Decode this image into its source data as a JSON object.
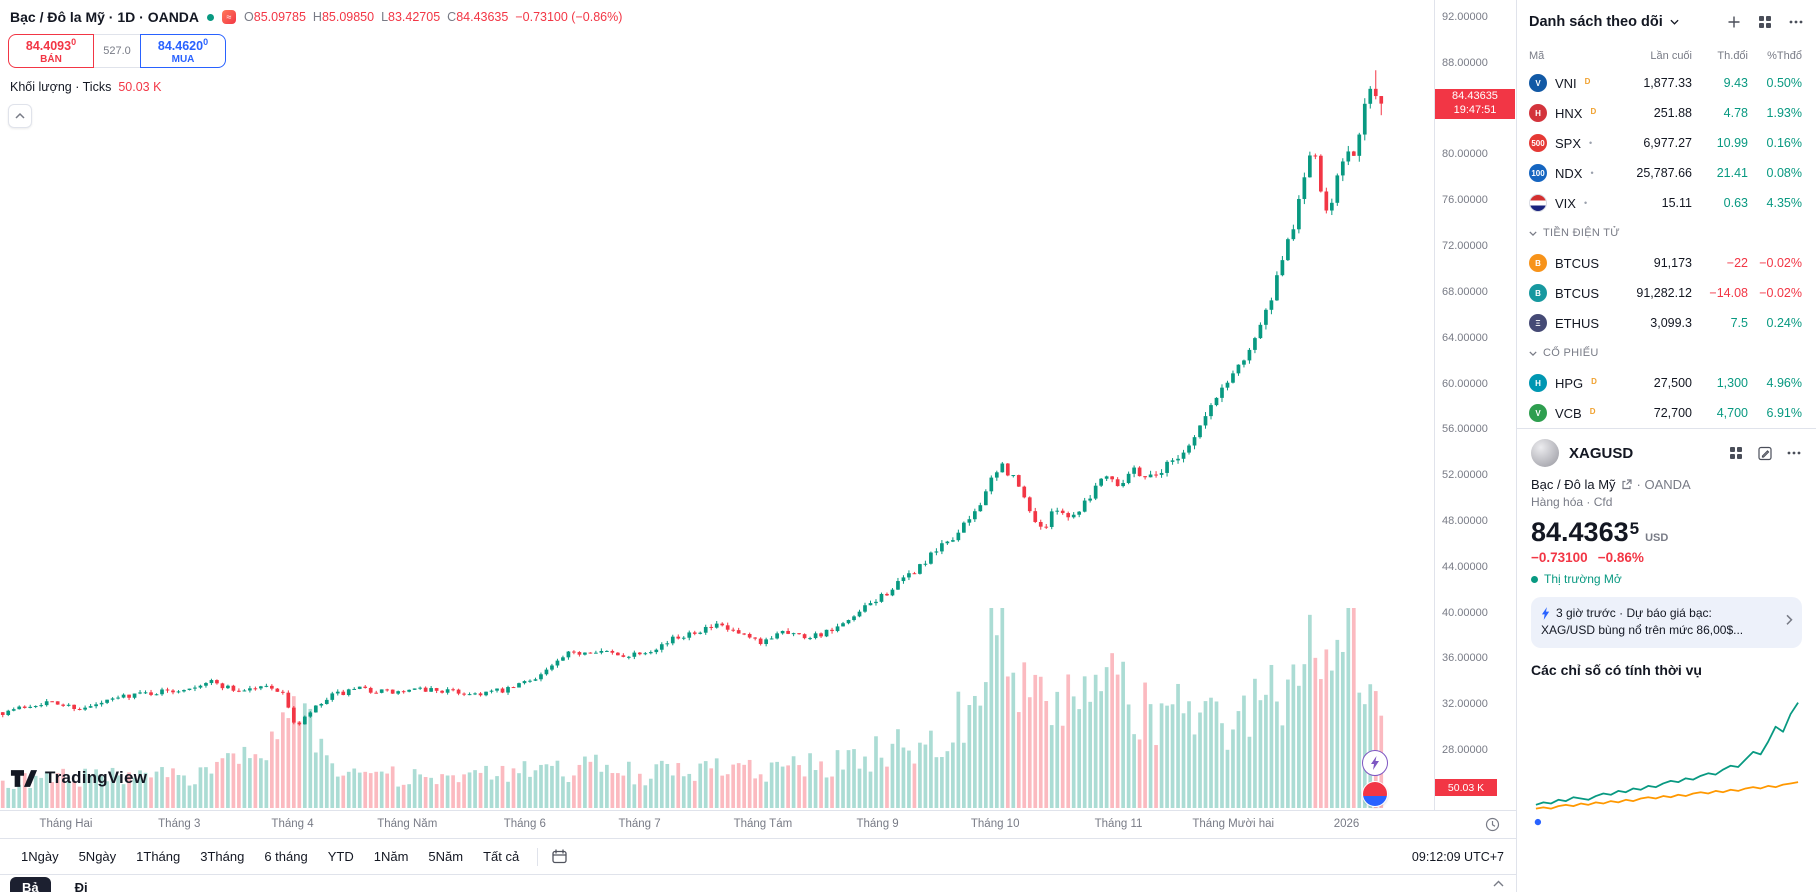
{
  "legend": {
    "title": "Bạc / Đô la Mỹ · 1D · OANDA",
    "keys": [
      "O",
      "H",
      "L",
      "C"
    ],
    "o": "85.09785",
    "h": "85.09850",
    "l": "83.42705",
    "c": "84.43635",
    "change": "−0.73100 (−0.86%)",
    "volume_label": "Khối lượng · Ticks",
    "volume_value": "50.03 K"
  },
  "trade": {
    "sell_price": "84.4093",
    "sell_sup": "0",
    "sell_label": "BÁN",
    "spread": "527.0",
    "buy_price": "84.4620",
    "buy_sup": "0",
    "buy_label": "MUA"
  },
  "chart_data": [
    {
      "type": "candlestick",
      "symbol": "XAGUSD",
      "interval": "1D",
      "exchange": "OANDA",
      "y_axis": {
        "ticks": [
          92,
          88,
          84,
          80,
          76,
          72,
          68,
          64,
          60,
          56,
          52,
          48,
          44,
          40,
          36,
          32,
          28
        ],
        "decimals": 5
      },
      "x_labels": [
        {
          "t": "Tháng Hai",
          "f": 0.046
        },
        {
          "t": "Tháng 3",
          "f": 0.125
        },
        {
          "t": "Tháng 4",
          "f": 0.204
        },
        {
          "t": "Tháng Năm",
          "f": 0.284
        },
        {
          "t": "Tháng 6",
          "f": 0.366
        },
        {
          "t": "Tháng 7",
          "f": 0.446
        },
        {
          "t": "Tháng Tám",
          "f": 0.532
        },
        {
          "t": "Tháng 9",
          "f": 0.612
        },
        {
          "t": "Tháng 10",
          "f": 0.694
        },
        {
          "t": "Tháng 11",
          "f": 0.78
        },
        {
          "t": "Tháng Mười hai",
          "f": 0.86
        },
        {
          "t": "2026",
          "f": 0.939
        }
      ],
      "last_price": 84.43635,
      "last_price_label": "84.43635",
      "countdown": "19:47:51",
      "last_volume_label": "50.03 K",
      "candle_count": 252,
      "last_candle": {
        "o": 85.09785,
        "h": 85.0985,
        "l": 83.42705,
        "c": 84.43635
      },
      "spike_high": 87.35,
      "colors": {
        "up": "#089981",
        "down": "#f23645"
      },
      "price_anchors": [
        [
          0,
          31.3
        ],
        [
          0.03,
          32.2
        ],
        [
          0.06,
          31.6
        ],
        [
          0.09,
          32.8
        ],
        [
          0.125,
          33.2
        ],
        [
          0.15,
          34
        ],
        [
          0.17,
          33.2
        ],
        [
          0.195,
          33.6
        ],
        [
          0.205,
          32.6
        ],
        [
          0.213,
          29.8
        ],
        [
          0.222,
          31.2
        ],
        [
          0.24,
          32.8
        ],
        [
          0.26,
          33.3
        ],
        [
          0.284,
          33
        ],
        [
          0.31,
          33.3
        ],
        [
          0.34,
          32.9
        ],
        [
          0.366,
          33.2
        ],
        [
          0.39,
          34.6
        ],
        [
          0.41,
          36.3
        ],
        [
          0.43,
          36.8
        ],
        [
          0.446,
          36.2
        ],
        [
          0.465,
          36.6
        ],
        [
          0.48,
          37.3
        ],
        [
          0.5,
          38.4
        ],
        [
          0.52,
          38.8
        ],
        [
          0.532,
          38.2
        ],
        [
          0.55,
          37.2
        ],
        [
          0.565,
          38.6
        ],
        [
          0.58,
          37.9
        ],
        [
          0.6,
          38.3
        ],
        [
          0.612,
          39
        ],
        [
          0.63,
          40.8
        ],
        [
          0.65,
          42.5
        ],
        [
          0.668,
          44.3
        ],
        [
          0.685,
          46.2
        ],
        [
          0.694,
          47
        ],
        [
          0.705,
          48.8
        ],
        [
          0.715,
          51
        ],
        [
          0.725,
          52.8
        ],
        [
          0.735,
          51.5
        ],
        [
          0.745,
          48.8
        ],
        [
          0.755,
          47.2
        ],
        [
          0.765,
          49.3
        ],
        [
          0.775,
          48.2
        ],
        [
          0.78,
          49
        ],
        [
          0.79,
          50.5
        ],
        [
          0.8,
          52.3
        ],
        [
          0.81,
          51.2
        ],
        [
          0.82,
          52.6
        ],
        [
          0.83,
          51.8
        ],
        [
          0.84,
          52.4
        ],
        [
          0.85,
          53.5
        ],
        [
          0.86,
          54.5
        ],
        [
          0.872,
          57
        ],
        [
          0.884,
          59.5
        ],
        [
          0.896,
          61.5
        ],
        [
          0.906,
          63.5
        ],
        [
          0.916,
          66
        ],
        [
          0.926,
          69.5
        ],
        [
          0.934,
          73
        ],
        [
          0.939,
          75
        ],
        [
          0.944,
          78
        ],
        [
          0.95,
          81
        ],
        [
          0.956,
          76.5
        ],
        [
          0.962,
          74.8
        ],
        [
          0.968,
          78.5
        ],
        [
          0.974,
          80.5
        ],
        [
          0.98,
          79.5
        ],
        [
          0.986,
          82.5
        ],
        [
          0.992,
          86.3
        ],
        [
          1,
          84.44
        ]
      ],
      "volume_anchors": [
        [
          0,
          0.12
        ],
        [
          0.06,
          0.16
        ],
        [
          0.1,
          0.14
        ],
        [
          0.15,
          0.18
        ],
        [
          0.2,
          0.3
        ],
        [
          0.213,
          0.55
        ],
        [
          0.23,
          0.28
        ],
        [
          0.27,
          0.16
        ],
        [
          0.32,
          0.14
        ],
        [
          0.38,
          0.18
        ],
        [
          0.43,
          0.2
        ],
        [
          0.47,
          0.17
        ],
        [
          0.5,
          0.2
        ],
        [
          0.55,
          0.18
        ],
        [
          0.6,
          0.22
        ],
        [
          0.64,
          0.28
        ],
        [
          0.68,
          0.38
        ],
        [
          0.7,
          0.5
        ],
        [
          0.72,
          0.9
        ],
        [
          0.73,
          0.8
        ],
        [
          0.745,
          0.6
        ],
        [
          0.76,
          0.45
        ],
        [
          0.78,
          0.55
        ],
        [
          0.8,
          0.62
        ],
        [
          0.82,
          0.5
        ],
        [
          0.84,
          0.45
        ],
        [
          0.86,
          0.5
        ],
        [
          0.88,
          0.42
        ],
        [
          0.9,
          0.48
        ],
        [
          0.92,
          0.55
        ],
        [
          0.935,
          0.65
        ],
        [
          0.95,
          0.95
        ],
        [
          0.965,
          0.7
        ],
        [
          0.98,
          0.85
        ],
        [
          1,
          0.45
        ]
      ]
    },
    {
      "type": "line",
      "title": "Các chỉ số có tính thời vụ",
      "series": [
        {
          "name": "seasonal-current",
          "color": "#089981",
          "values": [
            0.16,
            0.18,
            0.17,
            0.2,
            0.19,
            0.22,
            0.21,
            0.2,
            0.23,
            0.25,
            0.24,
            0.27,
            0.26,
            0.29,
            0.28,
            0.31,
            0.3,
            0.33,
            0.35,
            0.34,
            0.37,
            0.36,
            0.39,
            0.41,
            0.4,
            0.44,
            0.47,
            0.46,
            0.52,
            0.58,
            0.56,
            0.66,
            0.78,
            0.74,
            0.88,
            0.97
          ]
        },
        {
          "name": "seasonal-average",
          "color": "#ff9800",
          "values": [
            0.13,
            0.14,
            0.13,
            0.15,
            0.16,
            0.15,
            0.17,
            0.16,
            0.18,
            0.17,
            0.19,
            0.18,
            0.2,
            0.19,
            0.21,
            0.22,
            0.21,
            0.23,
            0.22,
            0.24,
            0.23,
            0.25,
            0.26,
            0.25,
            0.27,
            0.26,
            0.28,
            0.27,
            0.29,
            0.3,
            0.29,
            0.31,
            0.3,
            0.32,
            0.33,
            0.34
          ]
        }
      ]
    }
  ],
  "toolbar": {
    "ranges": [
      "1Ngày",
      "5Ngày",
      "1Tháng",
      "3Tháng",
      "6 tháng",
      "YTD",
      "1Năm",
      "5Năm",
      "Tất cả"
    ],
    "clock": "09:12:09 UTC+7"
  },
  "bottom": {
    "tabs": [
      "Bả",
      "Đi"
    ]
  },
  "brand": {
    "name": "TradingView"
  },
  "watchlist": {
    "title": "Danh sách theo dõi",
    "columns": [
      "Mã",
      "Lần cuối",
      "Th.đổi",
      "%Thđổ"
    ],
    "rows": [
      {
        "type": "row",
        "symbol": "VNI",
        "badge": "D",
        "marker": "",
        "logo_bg": "#1259a5",
        "logo_text": "V",
        "last": "1,877.33",
        "chg": "9.43",
        "pct": "0.50%",
        "dir": "up"
      },
      {
        "type": "row",
        "symbol": "HNX",
        "badge": "D",
        "marker": "",
        "logo_bg": "#d3343c",
        "logo_text": "H",
        "last": "251.88",
        "chg": "4.78",
        "pct": "1.93%",
        "dir": "up"
      },
      {
        "type": "row",
        "symbol": "SPX",
        "badge": "",
        "marker": "•",
        "logo_bg": "#e53935",
        "logo_text": "500",
        "last": "6,977.27",
        "chg": "10.99",
        "pct": "0.16%",
        "dir": "up"
      },
      {
        "type": "row",
        "symbol": "NDX",
        "badge": "",
        "marker": "•",
        "logo_bg": "#1565c0",
        "logo_text": "100",
        "last": "25,787.66",
        "chg": "21.41",
        "pct": "0.08%",
        "dir": "up"
      },
      {
        "type": "row",
        "symbol": "VIX",
        "badge": "",
        "marker": "•",
        "logo_bg": "flag",
        "logo_text": "",
        "last": "15.11",
        "chg": "0.63",
        "pct": "4.35%",
        "dir": "up"
      },
      {
        "type": "section",
        "title": "TIỀN ĐIỆN TỬ"
      },
      {
        "type": "row",
        "symbol": "BTCUS",
        "badge": "",
        "marker": "",
        "logo_bg": "#f7931a",
        "logo_text": "B",
        "last": "91,173",
        "chg": "−22",
        "pct": "−0.02%",
        "dir": "down"
      },
      {
        "type": "row",
        "symbol": "BTCUS",
        "badge": "",
        "marker": "",
        "logo_bg": "#17989f",
        "logo_text": "B",
        "last": "91,282.12",
        "chg": "−14.08",
        "pct": "−0.02%",
        "dir": "down"
      },
      {
        "type": "row",
        "symbol": "ETHUS",
        "badge": "",
        "marker": "",
        "logo_bg": "#454a75",
        "logo_text": "Ξ",
        "last": "3,099.3",
        "chg": "7.5",
        "pct": "0.24%",
        "dir": "up"
      },
      {
        "type": "section",
        "title": "CỔ PHIẾU"
      },
      {
        "type": "row",
        "symbol": "HPG",
        "badge": "D",
        "marker": "",
        "logo_bg": "#0097b2",
        "logo_text": "H",
        "last": "27,500",
        "chg": "1,300",
        "pct": "4.96%",
        "dir": "up"
      },
      {
        "type": "row",
        "symbol": "VCB",
        "badge": "D",
        "marker": "",
        "logo_bg": "#2e9e4f",
        "logo_text": "V",
        "last": "72,700",
        "chg": "4,700",
        "pct": "6.91%",
        "dir": "up"
      }
    ]
  },
  "detail": {
    "symbol": "XAGUSD",
    "name": "Bạc / Đô la Mỹ",
    "exchange": "· OANDA",
    "type_line": "Hàng hóa · Cfd",
    "price_main": "84.4363",
    "price_sup": "5",
    "currency": "USD",
    "change": "−0.73100",
    "change_pct": "−0.86%",
    "market_status": "Thị trường Mở",
    "news_line1": "3 giờ trước · Dự báo giá bạc:",
    "news_line2": "XAG/USD bùng nổ trên mức 86,00$..."
  }
}
